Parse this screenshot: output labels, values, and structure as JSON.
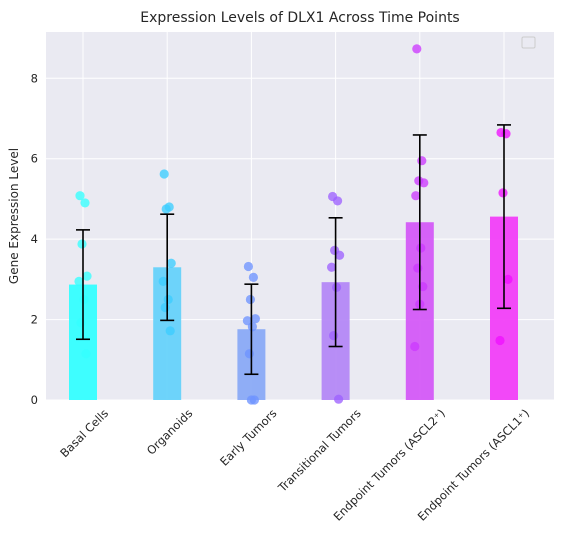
{
  "chart_data": {
    "type": "bar",
    "title": "Expression Levels of DLX1 Across Time Points",
    "xlabel": "",
    "ylabel": "Gene Expression Level",
    "ylim": [
      0,
      9.15
    ],
    "yticks": [
      0,
      2,
      4,
      6,
      8
    ],
    "grid": true,
    "legend": "top-right (empty)",
    "categories": [
      "Basal Cells",
      "Organoids",
      "Early Tumors",
      "Transitional Tumors",
      "Endpoint Tumors (ASCL2⁺)",
      "Endpoint Tumors (ASCL1⁺)"
    ],
    "means": [
      2.87,
      3.3,
      1.76,
      2.93,
      4.42,
      4.56
    ],
    "errors": [
      1.36,
      1.32,
      1.12,
      1.6,
      2.17,
      2.28
    ],
    "bar_colors": [
      "#35FFFF",
      "#66D2FA",
      "#8AAAF5",
      "#B488F6",
      "#D45AF7",
      "#F23FF8"
    ],
    "points": [
      [
        5.08,
        4.9,
        3.88,
        3.08,
        2.95,
        2.5,
        1.92,
        1.15
      ],
      [
        5.62,
        4.8,
        4.75,
        3.4,
        2.95,
        2.5,
        2.3,
        1.72
      ],
      [
        3.32,
        3.05,
        2.5,
        2.02,
        1.97,
        1.82,
        1.15,
        0.0,
        0.0
      ],
      [
        5.06,
        4.95,
        3.72,
        3.6,
        3.3,
        2.8,
        1.6,
        0.02
      ],
      [
        8.73,
        5.95,
        5.45,
        5.4,
        5.08,
        3.78,
        3.28,
        2.82,
        2.38,
        1.33
      ],
      [
        6.65,
        6.62,
        5.15,
        3.0,
        1.48
      ]
    ],
    "point_colors": [
      "#35FFFF",
      "#3CCDFF",
      "#6E93FF",
      "#9E61FF",
      "#CC3AFF",
      "#F010FF"
    ]
  }
}
